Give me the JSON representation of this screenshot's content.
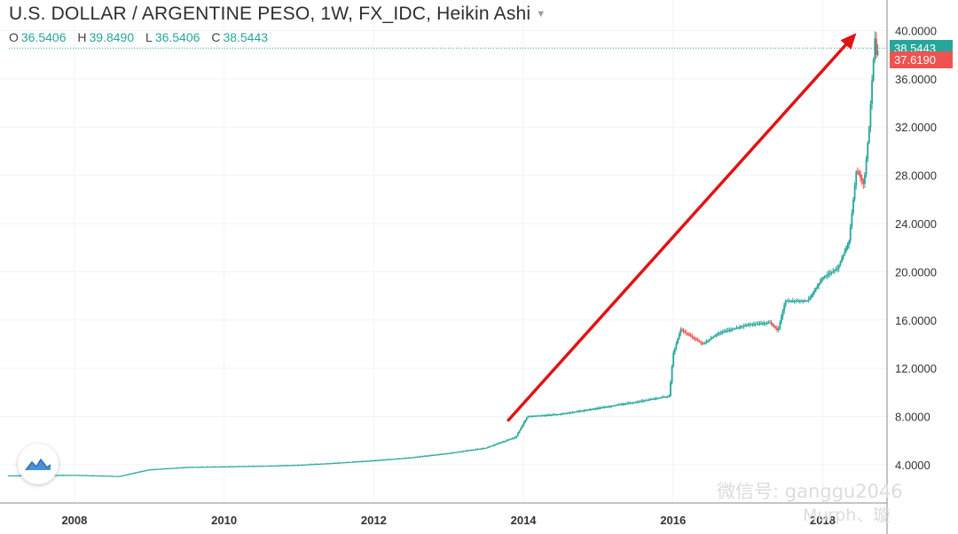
{
  "header": {
    "title": "U.S. DOLLAR / ARGENTINE PESO, 1W, FX_IDC, Heikin Ashi",
    "ohlc": [
      {
        "key": "O",
        "value": "36.5406"
      },
      {
        "key": "H",
        "value": "39.8490"
      },
      {
        "key": "L",
        "value": "36.5406"
      },
      {
        "key": "C",
        "value": "38.5443"
      }
    ]
  },
  "price_tags": {
    "last": "38.5443",
    "second": "37.6190"
  },
  "colors": {
    "up": "#26a69a",
    "down": "#ef5350",
    "annotation_arrow": "#e01414",
    "grid": "#f0f3fa"
  },
  "watermark": {
    "line1": "微信号: ganggu2046",
    "line2": "Murph、璇"
  },
  "chart_data": {
    "type": "candlestick",
    "style": "Heikin Ashi",
    "interval": "1W",
    "x_axis_ticks": [
      "2008",
      "2010",
      "2012",
      "2014",
      "2016",
      "2018"
    ],
    "y_axis_ticks": [
      "4.0000",
      "8.0000",
      "12.0000",
      "16.0000",
      "20.0000",
      "24.0000",
      "28.0000",
      "32.0000",
      "36.0000",
      "40.0000"
    ],
    "xlim": [
      2007.1,
      2018.8
    ],
    "ylim": [
      1.2,
      41.8
    ],
    "grid": true,
    "price_curve": [
      [
        2007.1,
        3.1
      ],
      [
        2008.0,
        3.15
      ],
      [
        2008.6,
        3.05
      ],
      [
        2009.0,
        3.6
      ],
      [
        2009.5,
        3.8
      ],
      [
        2010.0,
        3.85
      ],
      [
        2010.5,
        3.9
      ],
      [
        2011.0,
        3.98
      ],
      [
        2011.5,
        4.15
      ],
      [
        2012.0,
        4.35
      ],
      [
        2012.5,
        4.6
      ],
      [
        2013.0,
        4.95
      ],
      [
        2013.5,
        5.4
      ],
      [
        2013.9,
        6.3
      ],
      [
        2014.05,
        8.0
      ],
      [
        2014.5,
        8.2
      ],
      [
        2015.0,
        8.7
      ],
      [
        2015.5,
        9.2
      ],
      [
        2015.95,
        9.7
      ],
      [
        2016.0,
        13.2
      ],
      [
        2016.1,
        15.2
      ],
      [
        2016.25,
        14.6
      ],
      [
        2016.4,
        14.0
      ],
      [
        2016.6,
        14.9
      ],
      [
        2017.0,
        15.6
      ],
      [
        2017.3,
        15.8
      ],
      [
        2017.4,
        15.1
      ],
      [
        2017.5,
        17.6
      ],
      [
        2017.8,
        17.6
      ],
      [
        2018.0,
        19.5
      ],
      [
        2018.2,
        20.3
      ],
      [
        2018.35,
        22.5
      ],
      [
        2018.45,
        28.5
      ],
      [
        2018.55,
        27.2
      ],
      [
        2018.62,
        32.0
      ],
      [
        2018.66,
        36.0
      ],
      [
        2018.7,
        39.6
      ],
      [
        2018.72,
        37.6
      ],
      [
        2018.74,
        38.54
      ]
    ],
    "annotation_arrow": {
      "from": [
        2013.8,
        7.7
      ],
      "to": [
        2018.45,
        39.8
      ]
    }
  }
}
